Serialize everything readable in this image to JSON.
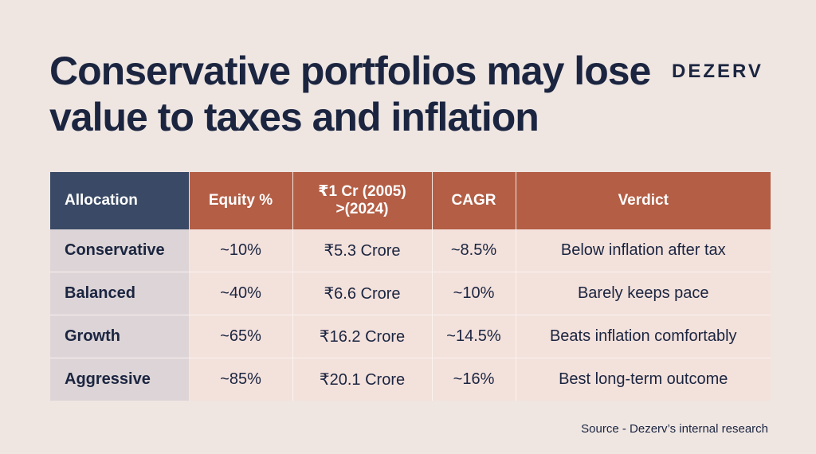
{
  "headline": "Conservative portfolios may lose value to taxes and inflation",
  "brand": "DEZERV",
  "table": {
    "headers": [
      "Allocation",
      "Equity %",
      "₹1 Cr (2005) >(2024)",
      "CAGR",
      "Verdict"
    ],
    "rows": [
      [
        "Conservative",
        "~10%",
        "₹5.3 Crore",
        "~8.5%",
        "Below inflation after tax"
      ],
      [
        "Balanced",
        "~40%",
        "₹6.6 Crore",
        "~10%",
        "Barely keeps pace"
      ],
      [
        "Growth",
        "~65%",
        "₹16.2 Crore",
        "~14.5%",
        "Beats inflation comfortably"
      ],
      [
        "Aggressive",
        "~85%",
        "₹20.1 Crore",
        "~16%",
        "Best long-term outcome"
      ]
    ]
  },
  "source": "Source - Dezerv’s internal research",
  "colors": {
    "background": "#efe6e2",
    "navy": "#1b2540",
    "header_dark": "#3a4a66",
    "header_accent": "#b35e45"
  }
}
